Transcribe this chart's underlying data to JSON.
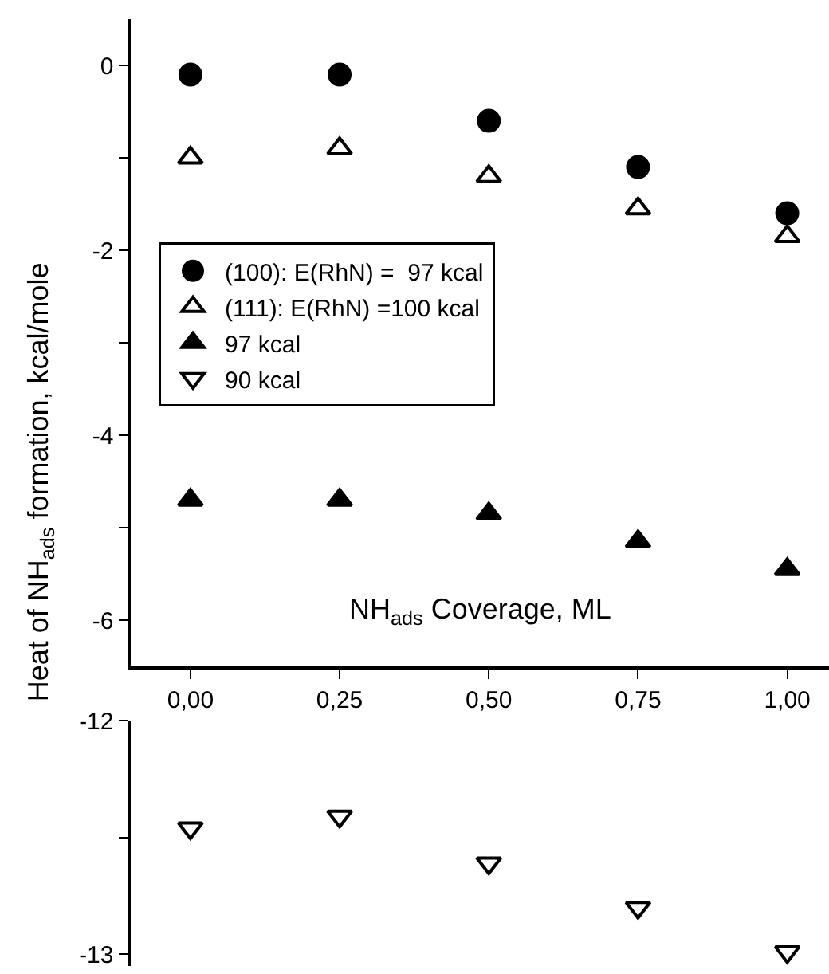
{
  "chart_data": [
    {
      "type": "scatter",
      "xlabel": "NH$_{ads}$ Coverage, ML",
      "ylabel": "Heat of NH$_{ads}$ formation, kcal/mole",
      "x": [
        0,
        0.25,
        0.5,
        0.75,
        1.0
      ],
      "series": [
        {
          "name": "(100): E(RhN) =  97 kcal",
          "color": "#000000",
          "marker": "circle",
          "values": [
            -0.1,
            -0.1,
            -0.6,
            -1.1,
            -1.6
          ]
        },
        {
          "name": "(111): E(RhN) =100 kcal",
          "color": "#000000",
          "marker": "triangle-open",
          "values": [
            -1.0,
            -0.9,
            -1.2,
            -1.55,
            -1.85
          ]
        },
        {
          "name": "97 kcal",
          "color": "#000000",
          "marker": "triangle",
          "values": [
            -4.7,
            -4.7,
            -4.85,
            -5.15,
            -5.45
          ]
        }
      ],
      "xlim": [
        -0.1,
        1.07
      ],
      "xticks": [
        {
          "value": 0,
          "label": "0,00"
        },
        {
          "value": 0.25,
          "label": "0,25"
        },
        {
          "value": 0.5,
          "label": "0,50"
        },
        {
          "value": 0.75,
          "label": "0,75"
        },
        {
          "value": 1.0,
          "label": "1,00"
        }
      ],
      "ylim": [
        -6.5,
        0.5
      ],
      "yticks": [
        0,
        {
          "value": -1,
          "label": null
        },
        -2,
        {
          "value": -3,
          "label": null
        },
        -4,
        {
          "value": -5,
          "label": null
        },
        -6
      ],
      "legend": "top left"
    },
    {
      "type": "scatter",
      "x": [
        0,
        0.25,
        0.5,
        0.75,
        1.0
      ],
      "series": [
        {
          "name": "90 kcal",
          "color": "#000000",
          "marker": "triangle-down-open",
          "values": [
            -12.46,
            -12.41,
            -12.61,
            -12.8,
            -12.99
          ]
        }
      ],
      "xlim": [
        -0.1,
        1.07
      ],
      "ylim": [
        -13.05,
        -12
      ],
      "yticks": [
        -12,
        {
          "value": -12.5,
          "label": null
        },
        -13
      ],
      "tick_labels": "y"
    }
  ]
}
